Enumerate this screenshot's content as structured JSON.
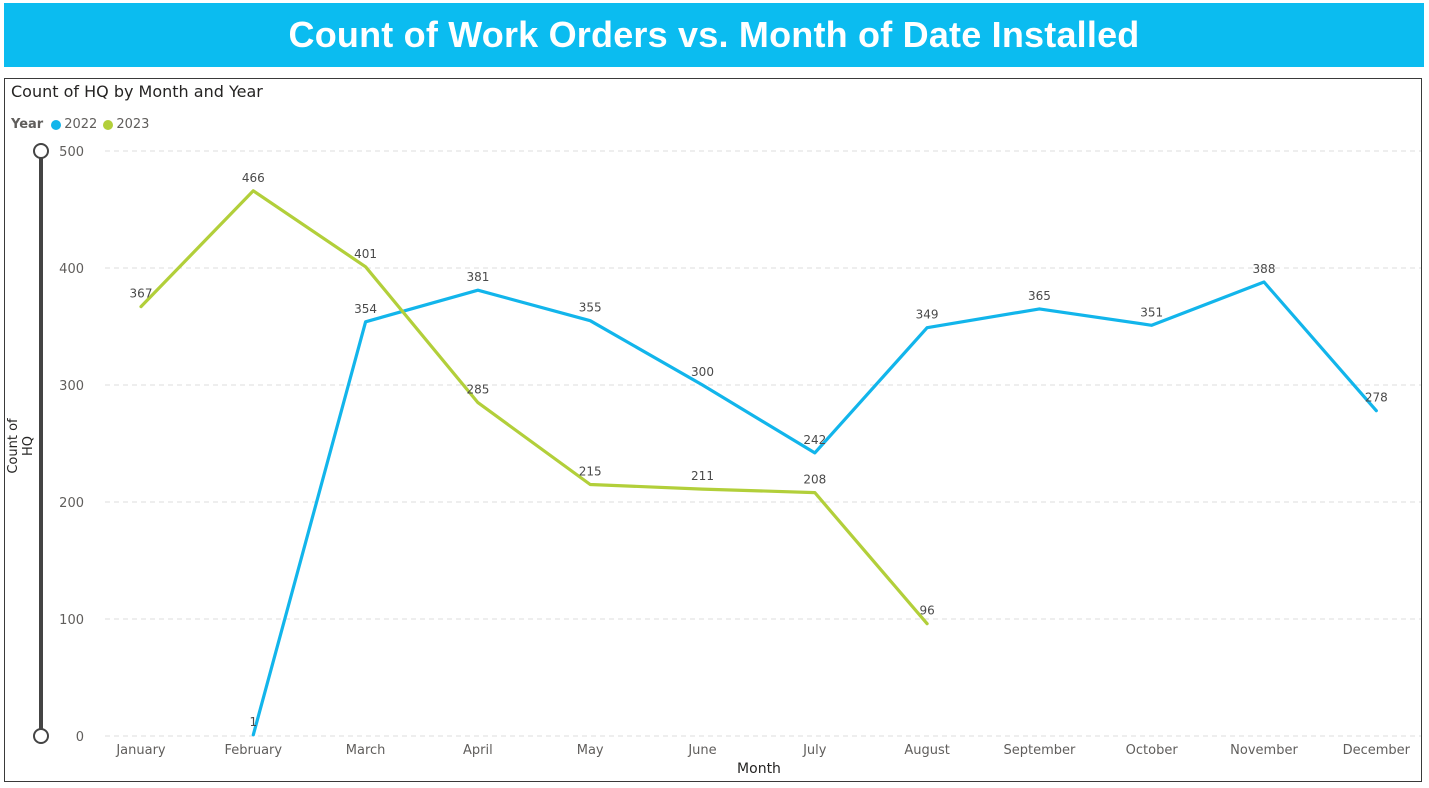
{
  "banner": {
    "title": "Count of Work Orders vs. Month of Date Installed"
  },
  "visual": {
    "title": "Count of HQ by Month and Year",
    "legend_title": "Year"
  },
  "chart_data": {
    "type": "line",
    "title": "Count of HQ by Month and Year",
    "xlabel": "Month",
    "ylabel": "Count of HQ",
    "ylim": [
      0,
      500
    ],
    "yticks": [
      0,
      100,
      200,
      300,
      400,
      500
    ],
    "grid": "horizontal dashed",
    "legend_placement": "top-left",
    "categories": [
      "January",
      "February",
      "March",
      "April",
      "May",
      "June",
      "July",
      "August",
      "September",
      "October",
      "November",
      "December"
    ],
    "series": [
      {
        "name": "2022",
        "color": "#12b5eb",
        "values": [
          null,
          1,
          354,
          381,
          355,
          300,
          242,
          349,
          365,
          351,
          388,
          278
        ]
      },
      {
        "name": "2023",
        "color": "#b2cf3a",
        "values": [
          367,
          466,
          401,
          285,
          215,
          211,
          208,
          96,
          null,
          null,
          null,
          null
        ]
      }
    ]
  }
}
